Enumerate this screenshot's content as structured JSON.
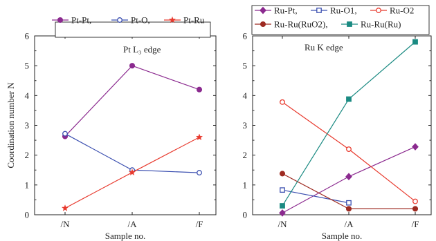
{
  "chart_data": [
    {
      "type": "line",
      "annotation": "Pt L₃ edge",
      "xlabel": "Sample no.",
      "ylabel": "Coordination number N",
      "categories": [
        "/N",
        "/A",
        "/F"
      ],
      "ylim": [
        0,
        6
      ],
      "yticks": [
        "0",
        "1",
        "2",
        "3",
        "4",
        "5",
        "6"
      ],
      "legend_position": "top",
      "series": [
        {
          "name": "Pt-Pt,",
          "color": "#8b2a8f",
          "marker": "filled-circle",
          "values": [
            2.63,
            5.0,
            4.2
          ]
        },
        {
          "name": "Pt-O,",
          "color": "#3b4fb0",
          "marker": "open-circle",
          "values": [
            2.72,
            1.5,
            1.41
          ]
        },
        {
          "name": "Pt-Ru",
          "color": "#e83a2e",
          "marker": "star",
          "values": [
            0.22,
            1.42,
            2.6
          ]
        }
      ]
    },
    {
      "type": "line",
      "annotation": "Ru K edge",
      "xlabel": "Sample no.",
      "ylabel": "",
      "categories": [
        "/N",
        "/A",
        "/F"
      ],
      "ylim": [
        0,
        6
      ],
      "yticks": [
        "0",
        "1",
        "2",
        "3",
        "4",
        "5",
        "6"
      ],
      "legend_position": "top",
      "series": [
        {
          "name": "Ru-Pt,",
          "color": "#8b2a8f",
          "marker": "filled-diamond",
          "values": [
            0.06,
            1.28,
            2.28
          ]
        },
        {
          "name": "Ru-O1,",
          "color": "#3b4fb0",
          "marker": "open-square",
          "values": [
            0.83,
            0.4,
            null
          ]
        },
        {
          "name": "Ru-O2",
          "color": "#e83a2e",
          "marker": "open-circle",
          "values": [
            3.78,
            2.2,
            0.45
          ]
        },
        {
          "name": "Ru-Ru(RuO2),",
          "color": "#9e2b22",
          "marker": "filled-circle",
          "values": [
            1.38,
            0.2,
            0.2
          ]
        },
        {
          "name": "Ru-Ru(Ru)",
          "color": "#1a8a82",
          "marker": "filled-square",
          "values": [
            0.3,
            3.88,
            5.8
          ]
        }
      ]
    }
  ]
}
